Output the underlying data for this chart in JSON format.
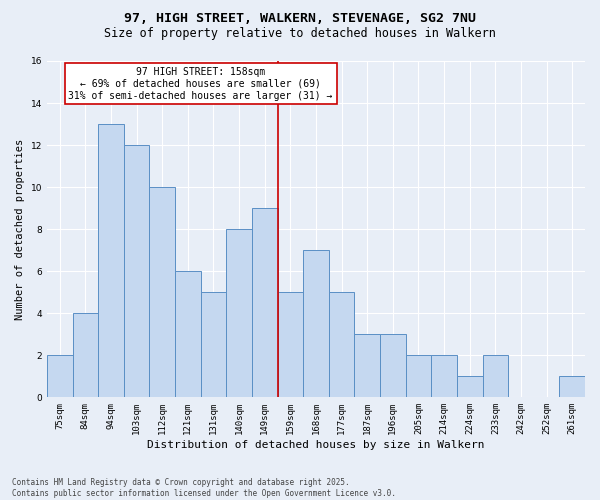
{
  "title": "97, HIGH STREET, WALKERN, STEVENAGE, SG2 7NU",
  "subtitle": "Size of property relative to detached houses in Walkern",
  "xlabel": "Distribution of detached houses by size in Walkern",
  "ylabel": "Number of detached properties",
  "categories": [
    "75sqm",
    "84sqm",
    "94sqm",
    "103sqm",
    "112sqm",
    "121sqm",
    "131sqm",
    "140sqm",
    "149sqm",
    "159sqm",
    "168sqm",
    "177sqm",
    "187sqm",
    "196sqm",
    "205sqm",
    "214sqm",
    "224sqm",
    "233sqm",
    "242sqm",
    "252sqm",
    "261sqm"
  ],
  "values": [
    2,
    4,
    13,
    12,
    10,
    6,
    5,
    8,
    9,
    5,
    7,
    5,
    3,
    3,
    2,
    2,
    1,
    2,
    0,
    0,
    1
  ],
  "bar_color": "#c5d8f0",
  "bar_edge_color": "#5a8fc5",
  "highlight_index": 9,
  "highlight_line_color": "#cc0000",
  "annotation_text": "97 HIGH STREET: 158sqm\n← 69% of detached houses are smaller (69)\n31% of semi-detached houses are larger (31) →",
  "annotation_box_color": "#ffffff",
  "annotation_box_edge_color": "#cc0000",
  "ylim": [
    0,
    16
  ],
  "yticks": [
    0,
    2,
    4,
    6,
    8,
    10,
    12,
    14,
    16
  ],
  "background_color": "#e8eef7",
  "grid_color": "#ffffff",
  "footnote": "Contains HM Land Registry data © Crown copyright and database right 2025.\nContains public sector information licensed under the Open Government Licence v3.0.",
  "title_fontsize": 9.5,
  "subtitle_fontsize": 8.5,
  "xlabel_fontsize": 8,
  "ylabel_fontsize": 7.5,
  "tick_fontsize": 6.5,
  "annotation_fontsize": 7,
  "footnote_fontsize": 5.5
}
